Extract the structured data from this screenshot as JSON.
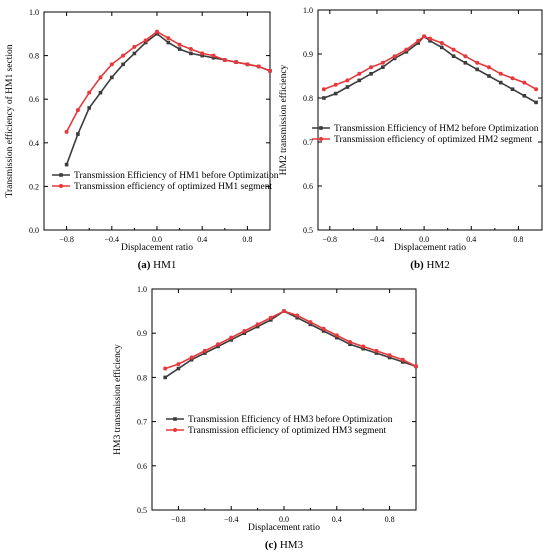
{
  "colors": {
    "before": "#3c3c3c",
    "after": "#e8383c",
    "axis": "#000000"
  },
  "chart_data": [
    {
      "type": "line",
      "caption_letter": "(a)",
      "caption_text": " HM1",
      "xlabel": "Displacement ratio",
      "ylabel": "Transmission efficiency of HM1 section",
      "xlim": [
        -1.0,
        1.0
      ],
      "ylim": [
        0.0,
        1.0
      ],
      "xticks": [
        -0.8,
        -0.4,
        0.0,
        0.4,
        0.8
      ],
      "xtick_labels": [
        "−0.8",
        "−0.4",
        "0.0",
        "0.4",
        "0.8"
      ],
      "yticks": [
        0.0,
        0.2,
        0.4,
        0.6,
        0.8,
        1.0
      ],
      "ytick_labels": [
        "0.0",
        "0.2",
        "0.4",
        "0.6",
        "0.8",
        "1.0"
      ],
      "legend_position": "center",
      "series": [
        {
          "name": "Transmission Efficiency of HM1 before Optimization",
          "color_key": "before",
          "x": [
            -0.8,
            -0.7,
            -0.6,
            -0.5,
            -0.4,
            -0.3,
            -0.2,
            -0.1,
            0.0,
            0.1,
            0.2,
            0.3,
            0.4,
            0.5,
            0.6,
            0.7,
            0.8,
            0.9,
            1.0
          ],
          "y": [
            0.3,
            0.44,
            0.56,
            0.63,
            0.7,
            0.76,
            0.81,
            0.86,
            0.9,
            0.86,
            0.83,
            0.81,
            0.8,
            0.79,
            0.78,
            0.77,
            0.76,
            0.75,
            0.73
          ]
        },
        {
          "name": "Transmission efficiency of optimized HM1 segment",
          "color_key": "after",
          "x": [
            -0.8,
            -0.7,
            -0.6,
            -0.5,
            -0.4,
            -0.3,
            -0.2,
            -0.1,
            0.0,
            0.1,
            0.2,
            0.3,
            0.4,
            0.5,
            0.6,
            0.7,
            0.8,
            0.9,
            1.0
          ],
          "y": [
            0.45,
            0.55,
            0.63,
            0.7,
            0.76,
            0.8,
            0.84,
            0.87,
            0.91,
            0.88,
            0.85,
            0.83,
            0.81,
            0.8,
            0.78,
            0.77,
            0.76,
            0.75,
            0.73
          ]
        }
      ]
    },
    {
      "type": "line",
      "caption_letter": "(b)",
      "caption_text": " HM2",
      "xlabel": "Displacement ratio",
      "ylabel": "HM2 transmission efficiency",
      "xlim": [
        -0.9,
        1.0
      ],
      "ylim": [
        0.5,
        1.0
      ],
      "xticks": [
        -0.8,
        -0.4,
        0.0,
        0.4,
        0.8
      ],
      "xtick_labels": [
        "−0.8",
        "−0.4",
        "0.0",
        "0.4",
        "0.8"
      ],
      "yticks": [
        0.5,
        0.6,
        0.7,
        0.8,
        0.9,
        1.0
      ],
      "ytick_labels": [
        "0.5",
        "0.6",
        "0.7",
        "0.8",
        "0.9",
        "1.0"
      ],
      "legend_position": "center-left",
      "series": [
        {
          "name": "Transmission Efficiency of HM2 before Optimization",
          "color_key": "before",
          "x": [
            -0.85,
            -0.75,
            -0.65,
            -0.55,
            -0.45,
            -0.35,
            -0.25,
            -0.15,
            -0.05,
            0.0,
            0.05,
            0.15,
            0.25,
            0.35,
            0.45,
            0.55,
            0.65,
            0.75,
            0.85,
            0.95
          ],
          "y": [
            0.8,
            0.81,
            0.825,
            0.84,
            0.855,
            0.87,
            0.89,
            0.905,
            0.925,
            0.94,
            0.93,
            0.915,
            0.895,
            0.88,
            0.865,
            0.85,
            0.835,
            0.82,
            0.805,
            0.79
          ]
        },
        {
          "name": "Transmission efficiency of optimized HM2 segment",
          "color_key": "after",
          "x": [
            -0.85,
            -0.75,
            -0.65,
            -0.55,
            -0.45,
            -0.35,
            -0.25,
            -0.15,
            -0.05,
            0.0,
            0.05,
            0.15,
            0.25,
            0.35,
            0.45,
            0.55,
            0.65,
            0.75,
            0.85,
            0.95
          ],
          "y": [
            0.82,
            0.83,
            0.84,
            0.855,
            0.87,
            0.88,
            0.895,
            0.91,
            0.93,
            0.94,
            0.935,
            0.925,
            0.91,
            0.895,
            0.88,
            0.87,
            0.855,
            0.845,
            0.835,
            0.82
          ]
        }
      ]
    },
    {
      "type": "line",
      "caption_letter": "(c)",
      "caption_text": " HM3",
      "xlabel": "Displacement ratio",
      "ylabel": "HM3 transmission efficiency",
      "xlim": [
        -1.0,
        1.0
      ],
      "ylim": [
        0.5,
        1.0
      ],
      "xticks": [
        -0.8,
        -0.4,
        0.0,
        0.4,
        0.8
      ],
      "xtick_labels": [
        "−0.8",
        "−0.4",
        "0.0",
        "0.4",
        "0.8"
      ],
      "yticks": [
        0.5,
        0.6,
        0.7,
        0.8,
        0.9,
        1.0
      ],
      "ytick_labels": [
        "0.5",
        "0.6",
        "0.7",
        "0.8",
        "0.9",
        "1.0"
      ],
      "legend_position": "center-left",
      "series": [
        {
          "name": "Transmission Efficiency of HM3 before Optimization",
          "color_key": "before",
          "x": [
            -0.9,
            -0.8,
            -0.7,
            -0.6,
            -0.5,
            -0.4,
            -0.3,
            -0.2,
            -0.1,
            0.0,
            0.1,
            0.2,
            0.3,
            0.4,
            0.5,
            0.6,
            0.7,
            0.8,
            0.9,
            1.0
          ],
          "y": [
            0.8,
            0.82,
            0.84,
            0.855,
            0.87,
            0.885,
            0.9,
            0.915,
            0.93,
            0.95,
            0.935,
            0.92,
            0.905,
            0.89,
            0.875,
            0.865,
            0.855,
            0.845,
            0.835,
            0.825
          ]
        },
        {
          "name": "Transmission efficiency of optimized HM3 segment",
          "color_key": "after",
          "x": [
            -0.9,
            -0.8,
            -0.7,
            -0.6,
            -0.5,
            -0.4,
            -0.3,
            -0.2,
            -0.1,
            0.0,
            0.1,
            0.2,
            0.3,
            0.4,
            0.5,
            0.6,
            0.7,
            0.8,
            0.9,
            1.0
          ],
          "y": [
            0.82,
            0.83,
            0.845,
            0.86,
            0.875,
            0.89,
            0.905,
            0.92,
            0.935,
            0.95,
            0.94,
            0.925,
            0.91,
            0.895,
            0.88,
            0.87,
            0.86,
            0.85,
            0.84,
            0.825
          ]
        }
      ]
    }
  ]
}
